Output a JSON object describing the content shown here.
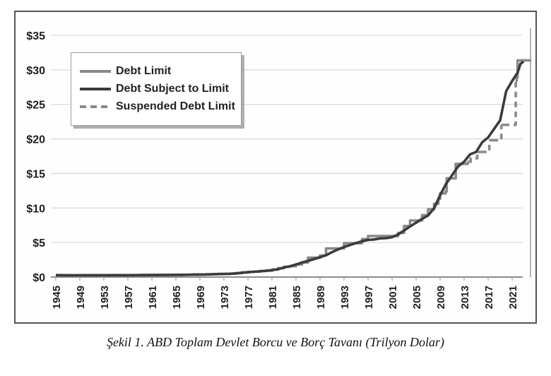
{
  "caption": "Şekil 1. ABD Toplam Devlet Borcu ve Borç Tavanı (Trilyon Dolar)",
  "chart_data": {
    "type": "line",
    "title": "",
    "xlabel": "",
    "ylabel": "",
    "grid": true,
    "legend_position": "top-left",
    "colors": {
      "debt_limit": "#8a8a8a",
      "debt_subject_to_limit": "#3b3b3b",
      "suspended_debt_limit": "#8a8a8a",
      "gridline": "#d9d9d9",
      "axis_line": "#8c8c8c",
      "tick": "#aaaaaa",
      "label_text": "#1f1f1f"
    },
    "y_axis": {
      "min": 0,
      "max": 35,
      "ticks": [
        {
          "label": "$35",
          "value": 35
        },
        {
          "label": "$30",
          "value": 30
        },
        {
          "label": "$25",
          "value": 25
        },
        {
          "label": "$20",
          "value": 20
        },
        {
          "label": "$15",
          "value": 15
        },
        {
          "label": "$10",
          "value": 10
        },
        {
          "label": "$5",
          "value": 5
        },
        {
          "label": "$0",
          "value": 0
        }
      ]
    },
    "x_axis": {
      "tick_years": [
        1945,
        1949,
        1953,
        1957,
        1961,
        1965,
        1969,
        1973,
        1977,
        1981,
        1985,
        1989,
        1993,
        1997,
        2001,
        2005,
        2009,
        2013,
        2017,
        2021
      ]
    },
    "series": [
      {
        "name": "Debt Limit",
        "style": "solid",
        "color": "#8a8a8a",
        "step": true,
        "segments": [
          [
            [
              1945,
              0.3
            ],
            [
              1946,
              0.275
            ],
            [
              1954,
              0.281
            ],
            [
              1958,
              0.288
            ],
            [
              1959,
              0.295
            ],
            [
              1960,
              0.293
            ],
            [
              1961,
              0.298
            ],
            [
              1962,
              0.308
            ],
            [
              1963,
              0.315
            ],
            [
              1964,
              0.324
            ],
            [
              1965,
              0.328
            ],
            [
              1966,
              0.33
            ],
            [
              1967,
              0.336
            ],
            [
              1968,
              0.365
            ],
            [
              1969,
              0.377
            ],
            [
              1970,
              0.395
            ],
            [
              1971,
              0.43
            ],
            [
              1972,
              0.45
            ],
            [
              1973,
              0.465
            ],
            [
              1974,
              0.495
            ],
            [
              1975,
              0.577
            ],
            [
              1976,
              0.682
            ],
            [
              1977,
              0.752
            ],
            [
              1978,
              0.798
            ],
            [
              1979,
              0.879
            ],
            [
              1980,
              0.925
            ],
            [
              1981,
              1.08
            ],
            [
              1982,
              1.29
            ],
            [
              1983,
              1.49
            ],
            [
              1984,
              1.573
            ],
            [
              1985,
              1.824
            ],
            [
              1986,
              2.111
            ],
            [
              1987,
              2.8
            ],
            [
              1989,
              3.123
            ],
            [
              1990,
              4.145
            ],
            [
              1993,
              4.9
            ],
            [
              1996,
              5.5
            ],
            [
              1997,
              5.95
            ],
            [
              2002,
              6.4
            ],
            [
              2003,
              7.384
            ],
            [
              2004,
              8.184
            ],
            [
              2006,
              8.965
            ],
            [
              2007,
              9.815
            ],
            [
              2008,
              10.615
            ],
            [
              2008.7,
              11.315
            ],
            [
              2009,
              12.104
            ],
            [
              2009.9,
              12.394
            ],
            [
              2010.1,
              14.294
            ],
            [
              2011.6,
              16.394
            ],
            [
              2013.1,
              16.394
            ]
          ],
          [
            [
              2013.6,
              16.699
            ],
            [
              2013.8,
              16.699
            ]
          ],
          [
            [
              2015.2,
              18.113
            ],
            [
              2015.8,
              18.113
            ]
          ],
          [
            [
              2017.2,
              19.809
            ],
            [
              2017.7,
              19.809
            ]
          ],
          [
            [
              2019.2,
              22.03
            ],
            [
              2019.6,
              22.03
            ]
          ],
          [
            [
              2021.6,
              28.4
            ],
            [
              2021.75,
              28.9
            ],
            [
              2021.9,
              31.381
            ],
            [
              2024.2,
              31.381
            ]
          ]
        ]
      },
      {
        "name": "Debt Subject to Limit",
        "style": "solid",
        "color": "#3b3b3b",
        "step": false,
        "segments": [
          [
            [
              1945,
              0.26
            ],
            [
              1947,
              0.26
            ],
            [
              1950,
              0.256
            ],
            [
              1953,
              0.27
            ],
            [
              1955,
              0.272
            ],
            [
              1957,
              0.27
            ],
            [
              1960,
              0.286
            ],
            [
              1962,
              0.3
            ],
            [
              1964,
              0.31
            ],
            [
              1966,
              0.32
            ],
            [
              1968,
              0.35
            ],
            [
              1970,
              0.37
            ],
            [
              1972,
              0.43
            ],
            [
              1974,
              0.47
            ],
            [
              1975,
              0.53
            ],
            [
              1976,
              0.62
            ],
            [
              1977,
              0.7
            ],
            [
              1978,
              0.77
            ],
            [
              1979,
              0.83
            ],
            [
              1980,
              0.91
            ],
            [
              1981,
              1.0
            ],
            [
              1982,
              1.14
            ],
            [
              1983,
              1.38
            ],
            [
              1984,
              1.57
            ],
            [
              1985,
              1.82
            ],
            [
              1986,
              2.11
            ],
            [
              1987,
              2.34
            ],
            [
              1988,
              2.6
            ],
            [
              1989,
              2.87
            ],
            [
              1990,
              3.16
            ],
            [
              1991,
              3.6
            ],
            [
              1992,
              4.0
            ],
            [
              1993,
              4.35
            ],
            [
              1994,
              4.64
            ],
            [
              1995,
              4.92
            ],
            [
              1996,
              5.18
            ],
            [
              1997,
              5.37
            ],
            [
              1998,
              5.44
            ],
            [
              1999,
              5.6
            ],
            [
              2000,
              5.63
            ],
            [
              2001,
              5.77
            ],
            [
              2002,
              6.16
            ],
            [
              2003,
              6.74
            ],
            [
              2004,
              7.33
            ],
            [
              2005,
              7.87
            ],
            [
              2006,
              8.42
            ],
            [
              2007,
              8.92
            ],
            [
              2008,
              9.96
            ],
            [
              2009,
              11.85
            ],
            [
              2010,
              13.51
            ],
            [
              2011,
              14.75
            ],
            [
              2012,
              16.03
            ],
            [
              2013,
              16.7
            ],
            [
              2014,
              17.78
            ],
            [
              2015,
              18.11
            ],
            [
              2016,
              19.51
            ],
            [
              2017,
              20.21
            ],
            [
              2018,
              21.46
            ],
            [
              2019,
              22.69
            ],
            [
              2020,
              26.9
            ],
            [
              2021,
              28.4
            ],
            [
              2021.9,
              29.6
            ],
            [
              2022.4,
              30.9
            ],
            [
              2022.9,
              31.2
            ]
          ]
        ]
      },
      {
        "name": "Suspended Debt Limit",
        "style": "dashed",
        "color": "#8a8a8a",
        "step": true,
        "segments": [
          [
            [
              2013.1,
              16.394
            ],
            [
              2013.6,
              16.699
            ]
          ],
          [
            [
              2013.8,
              16.699
            ],
            [
              2014.1,
              17.2
            ],
            [
              2015.2,
              18.113
            ]
          ],
          [
            [
              2015.8,
              18.113
            ],
            [
              2017.2,
              19.809
            ]
          ],
          [
            [
              2017.7,
              19.809
            ],
            [
              2019.2,
              22.03
            ]
          ],
          [
            [
              2019.6,
              22.03
            ],
            [
              2021.6,
              28.4
            ]
          ]
        ]
      }
    ]
  }
}
